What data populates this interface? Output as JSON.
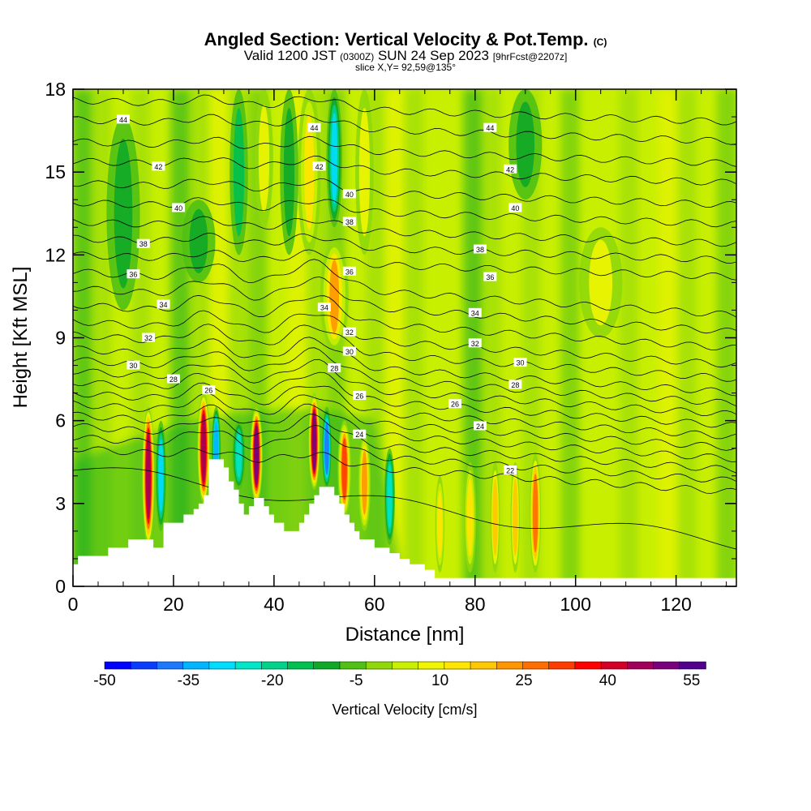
{
  "title": {
    "main": "Angled Section: Vertical Velocity & Pot.Temp.",
    "copyright": "(C)",
    "valid_prefix": "Valid 1200 JST",
    "valid_utc": "(0300Z)",
    "valid_date": "SUN 24 Sep 2023",
    "forecast": "[9hrFcst@2207z]",
    "slice": "slice X,Y= 92,59@135°"
  },
  "chart_data": {
    "type": "heatmap",
    "xlabel": "Distance [nm]",
    "ylabel": "Height [Kft MSL]",
    "xlim": [
      0,
      132
    ],
    "ylim": [
      0,
      18
    ],
    "xticks": [
      0,
      20,
      40,
      60,
      80,
      100,
      120
    ],
    "yticks": [
      0,
      3,
      6,
      9,
      12,
      15,
      18
    ],
    "colorbar": {
      "label": "Vertical Velocity [cm/s]",
      "min": -50,
      "max": 57.5,
      "step": 5,
      "tick_values": [
        -50,
        -35,
        -20,
        -5,
        10,
        25,
        40,
        55
      ],
      "colors": [
        "#0000ff",
        "#0a3cff",
        "#1e78ff",
        "#00b4ff",
        "#00dcff",
        "#00e6c8",
        "#00d28c",
        "#00c050",
        "#10a828",
        "#50c014",
        "#90d80a",
        "#c8f000",
        "#f0f500",
        "#ffe600",
        "#ffc800",
        "#ff9600",
        "#ff6e00",
        "#ff3c00",
        "#ff0000",
        "#d20028",
        "#a0005a",
        "#78007c",
        "#50008c"
      ]
    },
    "velocity_cells": [
      {
        "x": 15,
        "y_from": 1.5,
        "y_to": 6.5,
        "w": 1.8,
        "v": 50
      },
      {
        "x": 17.5,
        "y_from": 2,
        "y_to": 6,
        "w": 1.5,
        "v": -30
      },
      {
        "x": 26,
        "y_from": 3,
        "y_to": 7,
        "w": 1.8,
        "v": 50
      },
      {
        "x": 28.5,
        "y_from": 3.5,
        "y_to": 6.5,
        "w": 1.2,
        "v": -35
      },
      {
        "x": 36.5,
        "y_from": 3,
        "y_to": 6.5,
        "w": 1.8,
        "v": 55
      },
      {
        "x": 33,
        "y_from": 3.5,
        "y_to": 6,
        "w": 2,
        "v": -25
      },
      {
        "x": 48,
        "y_from": 3.5,
        "y_to": 7,
        "w": 1.6,
        "v": 55
      },
      {
        "x": 50.5,
        "y_from": 3.5,
        "y_to": 6.5,
        "w": 1.4,
        "v": -40
      },
      {
        "x": 54,
        "y_from": 2.5,
        "y_to": 6,
        "w": 2,
        "v": 35
      },
      {
        "x": 58,
        "y_from": 2,
        "y_to": 5.5,
        "w": 1.8,
        "v": 25
      },
      {
        "x": 63,
        "y_from": 1.5,
        "y_to": 5,
        "w": 1.5,
        "v": -25
      },
      {
        "x": 79,
        "y_from": 0.5,
        "y_to": 4.5,
        "w": 1.8,
        "v": 15
      },
      {
        "x": 84,
        "y_from": 0.5,
        "y_to": 4.5,
        "w": 1.2,
        "v": 20
      },
      {
        "x": 88,
        "y_from": 0.5,
        "y_to": 4.5,
        "w": 1.2,
        "v": 20
      },
      {
        "x": 92,
        "y_from": 0.5,
        "y_to": 4.8,
        "w": 1.6,
        "v": 30
      },
      {
        "x": 73,
        "y_from": 0.5,
        "y_to": 4,
        "w": 1.2,
        "v": 15
      },
      {
        "x": 52,
        "y_from": 8.5,
        "y_to": 12.5,
        "w": 5,
        "v": 25
      },
      {
        "x": 52,
        "y_from": 13,
        "y_to": 18,
        "w": 2.5,
        "v": -30
      },
      {
        "x": 47,
        "y_from": 12,
        "y_to": 18,
        "w": 4,
        "v": 15
      },
      {
        "x": 58,
        "y_from": 12,
        "y_to": 18,
        "w": 3,
        "v": 12
      },
      {
        "x": 43,
        "y_from": 12,
        "y_to": 18,
        "w": 3,
        "v": -10
      },
      {
        "x": 38,
        "y_from": 13,
        "y_to": 18,
        "w": 3,
        "v": 10
      },
      {
        "x": 33,
        "y_from": 12,
        "y_to": 18,
        "w": 3,
        "v": -12
      },
      {
        "x": 10,
        "y_from": 10,
        "y_to": 17,
        "w": 6,
        "v": -8
      },
      {
        "x": 90,
        "y_from": 14,
        "y_to": 18,
        "w": 6,
        "v": -8
      },
      {
        "x": 105,
        "y_from": 9,
        "y_to": 13,
        "w": 8,
        "v": 10
      },
      {
        "x": 25,
        "y_from": 11,
        "y_to": 14,
        "w": 6,
        "v": -8
      }
    ],
    "terrain": [
      [
        0,
        0.8
      ],
      [
        1,
        0.8
      ],
      [
        1,
        1.1
      ],
      [
        7,
        1.1
      ],
      [
        7,
        1.4
      ],
      [
        11,
        1.4
      ],
      [
        11,
        1.7
      ],
      [
        16,
        1.7
      ],
      [
        16,
        1.4
      ],
      [
        18,
        1.4
      ],
      [
        18,
        2.3
      ],
      [
        22,
        2.3
      ],
      [
        22,
        2.6
      ],
      [
        24,
        2.6
      ],
      [
        24,
        2.8
      ],
      [
        25,
        2.8
      ],
      [
        25,
        3.0
      ],
      [
        26,
        3.0
      ],
      [
        26,
        3.3
      ],
      [
        27,
        3.3
      ],
      [
        27,
        4.6
      ],
      [
        30,
        4.6
      ],
      [
        30,
        4.3
      ],
      [
        31,
        4.3
      ],
      [
        31,
        3.8
      ],
      [
        32,
        3.8
      ],
      [
        32,
        3.5
      ],
      [
        33,
        3.5
      ],
      [
        33,
        3.0
      ],
      [
        34,
        3.0
      ],
      [
        34,
        2.6
      ],
      [
        35,
        2.6
      ],
      [
        35,
        2.9
      ],
      [
        36,
        2.9
      ],
      [
        36,
        3.2
      ],
      [
        38,
        3.2
      ],
      [
        38,
        2.9
      ],
      [
        39,
        2.9
      ],
      [
        39,
        2.6
      ],
      [
        40,
        2.6
      ],
      [
        40,
        2.3
      ],
      [
        42,
        2.3
      ],
      [
        42,
        2.0
      ],
      [
        45,
        2.0
      ],
      [
        45,
        2.3
      ],
      [
        46,
        2.3
      ],
      [
        46,
        2.6
      ],
      [
        47,
        2.6
      ],
      [
        47,
        3.0
      ],
      [
        48,
        3.0
      ],
      [
        48,
        3.3
      ],
      [
        49,
        3.3
      ],
      [
        49,
        3.6
      ],
      [
        52,
        3.6
      ],
      [
        52,
        3.3
      ],
      [
        53,
        3.3
      ],
      [
        53,
        3.0
      ],
      [
        54,
        3.0
      ],
      [
        54,
        2.6
      ],
      [
        55,
        2.6
      ],
      [
        55,
        2.3
      ],
      [
        56,
        2.3
      ],
      [
        56,
        2.0
      ],
      [
        57,
        2.0
      ],
      [
        57,
        1.7
      ],
      [
        60,
        1.7
      ],
      [
        60,
        1.4
      ],
      [
        63,
        1.4
      ],
      [
        63,
        1.2
      ],
      [
        65,
        1.2
      ],
      [
        65,
        1.0
      ],
      [
        67,
        1.0
      ],
      [
        67,
        0.8
      ],
      [
        70,
        0.8
      ],
      [
        70,
        0.6
      ],
      [
        72,
        0.6
      ],
      [
        72,
        0.3
      ],
      [
        132,
        0.3
      ],
      [
        132,
        0
      ]
    ],
    "isentropes": [
      {
        "level": 22,
        "base": 4.2
      },
      {
        "level": 23,
        "base": 5.0
      },
      {
        "level": 24,
        "base": 5.4
      },
      {
        "level": 25,
        "base": 5.8
      },
      {
        "level": 26,
        "base": 6.2
      },
      {
        "level": 27,
        "base": 6.6
      },
      {
        "level": 28,
        "base": 7.0
      },
      {
        "level": 29,
        "base": 7.4
      },
      {
        "level": 30,
        "base": 7.8
      },
      {
        "level": 31,
        "base": 8.2
      },
      {
        "level": 32,
        "base": 8.6
      },
      {
        "level": 33,
        "base": 9.1
      },
      {
        "level": 34,
        "base": 9.6
      },
      {
        "level": 35,
        "base": 10.2
      },
      {
        "level": 36,
        "base": 10.8
      },
      {
        "level": 37,
        "base": 11.4
      },
      {
        "level": 38,
        "base": 12.0
      },
      {
        "level": 39,
        "base": 12.6
      },
      {
        "level": 40,
        "base": 13.2
      },
      {
        "level": 41,
        "base": 13.9
      },
      {
        "level": 42,
        "base": 14.6
      },
      {
        "level": 43,
        "base": 15.4
      },
      {
        "level": 44,
        "base": 16.1
      },
      {
        "level": 45,
        "base": 16.9
      },
      {
        "level": 46,
        "base": 17.6
      }
    ],
    "contour_labels": [
      {
        "text": "44",
        "x": 10,
        "y": 16.9
      },
      {
        "text": "42",
        "x": 17,
        "y": 15.2
      },
      {
        "text": "40",
        "x": 21,
        "y": 13.7
      },
      {
        "text": "38",
        "x": 14,
        "y": 12.4
      },
      {
        "text": "36",
        "x": 12,
        "y": 11.3
      },
      {
        "text": "34",
        "x": 18,
        "y": 10.2
      },
      {
        "text": "32",
        "x": 15,
        "y": 9.0
      },
      {
        "text": "30",
        "x": 12,
        "y": 8.0
      },
      {
        "text": "28",
        "x": 20,
        "y": 7.5
      },
      {
        "text": "26",
        "x": 27,
        "y": 7.1
      },
      {
        "text": "44",
        "x": 48,
        "y": 16.6
      },
      {
        "text": "42",
        "x": 49,
        "y": 15.2
      },
      {
        "text": "40",
        "x": 55,
        "y": 14.2
      },
      {
        "text": "38",
        "x": 55,
        "y": 13.2
      },
      {
        "text": "36",
        "x": 55,
        "y": 11.4
      },
      {
        "text": "34",
        "x": 50,
        "y": 10.1
      },
      {
        "text": "32",
        "x": 55,
        "y": 9.2
      },
      {
        "text": "30",
        "x": 55,
        "y": 8.5
      },
      {
        "text": "28",
        "x": 52,
        "y": 7.9
      },
      {
        "text": "26",
        "x": 57,
        "y": 6.9
      },
      {
        "text": "24",
        "x": 57,
        "y": 5.5
      },
      {
        "text": "44",
        "x": 83,
        "y": 16.6
      },
      {
        "text": "42",
        "x": 87,
        "y": 15.1
      },
      {
        "text": "40",
        "x": 88,
        "y": 13.7
      },
      {
        "text": "38",
        "x": 81,
        "y": 12.2
      },
      {
        "text": "36",
        "x": 83,
        "y": 11.2
      },
      {
        "text": "34",
        "x": 80,
        "y": 9.9
      },
      {
        "text": "32",
        "x": 80,
        "y": 8.8
      },
      {
        "text": "30",
        "x": 89,
        "y": 8.1
      },
      {
        "text": "28",
        "x": 88,
        "y": 7.3
      },
      {
        "text": "26",
        "x": 76,
        "y": 6.6
      },
      {
        "text": "24",
        "x": 81,
        "y": 5.8
      },
      {
        "text": "22",
        "x": 87,
        "y": 4.2
      }
    ]
  }
}
